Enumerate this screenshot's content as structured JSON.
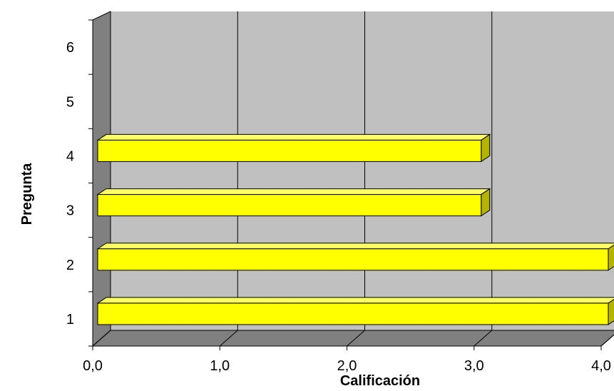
{
  "chart_data": {
    "type": "bar",
    "orientation": "horizontal",
    "style": "3d",
    "categories": [
      "1",
      "2",
      "3",
      "4",
      "5",
      "6"
    ],
    "values": [
      4.0,
      4.0,
      3.0,
      3.0,
      null,
      null
    ],
    "xlabel": "Calificación",
    "ylabel": "Pregunta",
    "xlim": [
      0,
      4
    ],
    "xticks": [
      "0,0",
      "1,0",
      "2,0",
      "3,0",
      "4,0"
    ],
    "grid": true,
    "colors": {
      "bar_front": "#ffff00",
      "bar_top": "#ffff66",
      "bar_side": "#b3b300",
      "wall": "#c0c0c0",
      "left_wall": "#808080",
      "floor": "#808080",
      "grid": "#000000"
    }
  }
}
